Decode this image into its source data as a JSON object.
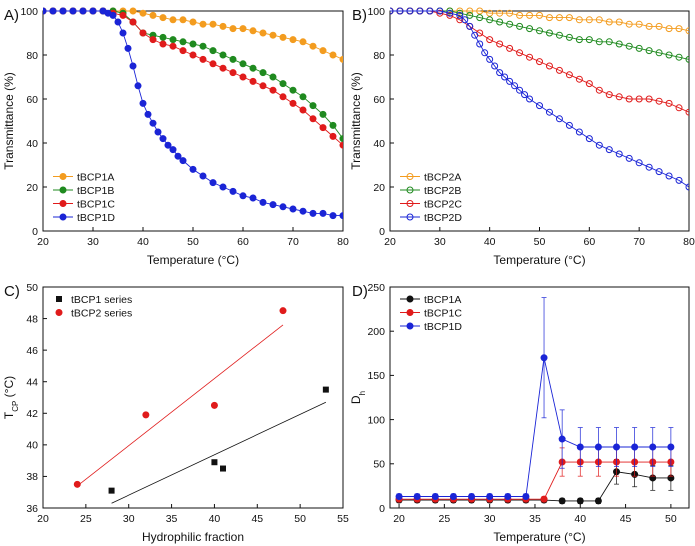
{
  "chart_data": [
    {
      "panel": "A)",
      "type": "line",
      "xlabel": "Temperature (°C)",
      "ylabel": "Transmittance (%)",
      "xlim": [
        20,
        80
      ],
      "ylim": [
        0,
        100
      ],
      "xticks": [
        "20",
        "30",
        "40",
        "50",
        "60",
        "70",
        "80"
      ],
      "yticks": [
        "0",
        "20",
        "40",
        "60",
        "80",
        "100"
      ],
      "marker": "filled",
      "legend_position": "bottom-left",
      "series": [
        {
          "name": "tBCP1A",
          "color": "#f39c1f",
          "x": [
            20,
            22,
            24,
            26,
            28,
            30,
            32,
            34,
            36,
            38,
            40,
            42,
            44,
            46,
            48,
            50,
            52,
            54,
            56,
            58,
            60,
            62,
            64,
            66,
            68,
            70,
            72,
            74,
            76,
            78,
            80
          ],
          "y": [
            100,
            100,
            100,
            100,
            100,
            100,
            100,
            100,
            100,
            100,
            99,
            98,
            97,
            96,
            96,
            95,
            94,
            94,
            93,
            92,
            92,
            91,
            90,
            89,
            88,
            87,
            86,
            84,
            82,
            80,
            78
          ]
        },
        {
          "name": "tBCP1B",
          "color": "#1f8a1f",
          "x": [
            20,
            22,
            24,
            26,
            28,
            30,
            32,
            34,
            36,
            38,
            40,
            42,
            44,
            46,
            48,
            50,
            52,
            54,
            56,
            58,
            60,
            62,
            64,
            66,
            68,
            70,
            72,
            74,
            76,
            78,
            80
          ],
          "y": [
            100,
            100,
            100,
            100,
            100,
            100,
            100,
            100,
            99,
            95,
            90,
            89,
            88,
            87,
            86,
            85,
            84,
            82,
            80,
            78,
            76,
            74,
            72,
            70,
            67,
            64,
            61,
            57,
            53,
            48,
            42
          ]
        },
        {
          "name": "tBCP1C",
          "color": "#e01b1b",
          "x": [
            20,
            22,
            24,
            26,
            28,
            30,
            32,
            34,
            36,
            38,
            40,
            42,
            44,
            46,
            48,
            50,
            52,
            54,
            56,
            58,
            60,
            62,
            64,
            66,
            68,
            70,
            72,
            74,
            76,
            78,
            80
          ],
          "y": [
            100,
            100,
            100,
            100,
            100,
            100,
            100,
            99,
            98,
            95,
            90,
            87,
            85,
            84,
            82,
            80,
            78,
            76,
            74,
            72,
            70,
            68,
            66,
            64,
            61,
            58,
            55,
            51,
            47,
            43,
            39
          ]
        },
        {
          "name": "tBCP1D",
          "color": "#1a24d6",
          "x": [
            20,
            22,
            24,
            26,
            28,
            30,
            32,
            33,
            34,
            35,
            36,
            37,
            38,
            39,
            40,
            41,
            42,
            43,
            44,
            45,
            46,
            47,
            48,
            50,
            52,
            54,
            56,
            58,
            60,
            62,
            64,
            66,
            68,
            70,
            72,
            74,
            76,
            78,
            80
          ],
          "y": [
            100,
            100,
            100,
            100,
            100,
            100,
            100,
            99,
            98,
            95,
            90,
            83,
            75,
            66,
            58,
            53,
            49,
            45,
            42,
            39,
            37,
            34,
            32,
            28,
            25,
            22,
            20,
            18,
            16,
            15,
            13,
            12,
            11,
            10,
            9,
            8,
            8,
            7,
            7
          ]
        }
      ]
    },
    {
      "panel": "B)",
      "type": "line",
      "xlabel": "Temperature (°C)",
      "ylabel": "Transmittance (%)",
      "xlim": [
        20,
        80
      ],
      "ylim": [
        0,
        100
      ],
      "xticks": [
        "20",
        "30",
        "40",
        "50",
        "60",
        "70",
        "80"
      ],
      "yticks": [
        "0",
        "20",
        "40",
        "60",
        "80",
        "100"
      ],
      "marker": "open",
      "legend_position": "bottom-left",
      "series": [
        {
          "name": "tBCP2A",
          "color": "#f39c1f",
          "x": [
            20,
            22,
            24,
            26,
            28,
            30,
            32,
            34,
            36,
            38,
            40,
            42,
            44,
            46,
            48,
            50,
            52,
            54,
            56,
            58,
            60,
            62,
            64,
            66,
            68,
            70,
            72,
            74,
            76,
            78,
            80
          ],
          "y": [
            100,
            100,
            100,
            100,
            100,
            100,
            100,
            100,
            100,
            100,
            99,
            99,
            99,
            98,
            98,
            98,
            97,
            97,
            97,
            96,
            96,
            96,
            95,
            95,
            94,
            94,
            93,
            93,
            92,
            92,
            91
          ]
        },
        {
          "name": "tBCP2B",
          "color": "#1f8a1f",
          "x": [
            20,
            22,
            24,
            26,
            28,
            30,
            32,
            34,
            36,
            38,
            40,
            42,
            44,
            46,
            48,
            50,
            52,
            54,
            56,
            58,
            60,
            62,
            64,
            66,
            68,
            70,
            72,
            74,
            76,
            78,
            80
          ],
          "y": [
            100,
            100,
            100,
            100,
            100,
            100,
            100,
            99,
            98,
            97,
            96,
            95,
            94,
            93,
            92,
            91,
            90,
            89,
            88,
            87,
            87,
            86,
            86,
            85,
            84,
            83,
            82,
            81,
            80,
            79,
            78
          ]
        },
        {
          "name": "tBCP2C",
          "color": "#e01b1b",
          "x": [
            20,
            22,
            24,
            26,
            28,
            30,
            32,
            34,
            36,
            38,
            40,
            42,
            44,
            46,
            48,
            50,
            52,
            54,
            56,
            58,
            60,
            62,
            64,
            66,
            68,
            70,
            72,
            74,
            76,
            78,
            80
          ],
          "y": [
            100,
            100,
            100,
            100,
            100,
            99,
            98,
            96,
            93,
            90,
            87,
            85,
            83,
            81,
            79,
            77,
            75,
            73,
            71,
            69,
            67,
            64,
            62,
            61,
            60,
            60,
            60,
            59,
            58,
            56,
            54
          ]
        },
        {
          "name": "tBCP2D",
          "color": "#1a24d6",
          "x": [
            20,
            22,
            24,
            26,
            28,
            30,
            32,
            34,
            35,
            36,
            37,
            38,
            39,
            40,
            41,
            42,
            43,
            44,
            45,
            46,
            47,
            48,
            50,
            52,
            54,
            56,
            58,
            60,
            62,
            64,
            66,
            68,
            70,
            72,
            74,
            76,
            78,
            80
          ],
          "y": [
            100,
            100,
            100,
            100,
            100,
            100,
            99,
            98,
            96,
            93,
            89,
            85,
            81,
            78,
            75,
            72,
            70,
            68,
            66,
            64,
            62,
            60,
            57,
            54,
            51,
            48,
            45,
            42,
            39,
            37,
            35,
            33,
            31,
            29,
            27,
            25,
            23,
            20
          ]
        }
      ]
    },
    {
      "panel": "C)",
      "type": "scatter",
      "xlabel": "Hydrophilic fraction",
      "ylabel": "T",
      "ylabel_sub": "CP",
      "ylabel_unit": " (°C)",
      "xlim": [
        20,
        55
      ],
      "ylim": [
        36,
        50
      ],
      "xticks": [
        "20",
        "25",
        "30",
        "35",
        "40",
        "45",
        "50",
        "55"
      ],
      "yticks": [
        "36",
        "38",
        "40",
        "42",
        "44",
        "46",
        "48",
        "50"
      ],
      "legend_position": "top-left",
      "series": [
        {
          "name": "tBCP1 series",
          "color": "#111111",
          "marker": "square",
          "x": [
            28,
            40,
            41,
            53
          ],
          "y": [
            37.1,
            38.9,
            38.5,
            43.5
          ],
          "fit": {
            "x": [
              28,
              53
            ],
            "y": [
              36.3,
              42.7
            ]
          }
        },
        {
          "name": "tBCP2 series",
          "color": "#e01b1b",
          "marker": "circle",
          "x": [
            24,
            32,
            40,
            48
          ],
          "y": [
            37.5,
            41.9,
            42.5,
            48.5
          ],
          "fit": {
            "x": [
              24,
              48
            ],
            "y": [
              37.4,
              47.6
            ]
          }
        }
      ]
    },
    {
      "panel": "D)",
      "type": "line",
      "xlabel": "Temperature (°C)",
      "ylabel": "D",
      "ylabel_sub": "h",
      "xlim": [
        19,
        52
      ],
      "ylim": [
        0,
        250
      ],
      "xticks": [
        "20",
        "25",
        "30",
        "35",
        "40",
        "45",
        "50"
      ],
      "yticks": [
        "0",
        "50",
        "100",
        "150",
        "200",
        "250"
      ],
      "legend_position": "top-left",
      "series": [
        {
          "name": "tBCP1A",
          "color": "#111111",
          "x": [
            20,
            22,
            24,
            26,
            28,
            30,
            32,
            34,
            36,
            38,
            40,
            42,
            44,
            46,
            48,
            50
          ],
          "y": [
            9,
            9,
            9,
            9,
            9,
            9,
            9,
            9,
            9,
            8,
            8,
            8,
            41,
            38,
            34,
            34
          ],
          "err": [
            3,
            3,
            3,
            3,
            3,
            3,
            3,
            3,
            3,
            3,
            3,
            3,
            14,
            14,
            14,
            14
          ]
        },
        {
          "name": "tBCP1C",
          "color": "#e01b1b",
          "x": [
            20,
            22,
            24,
            26,
            28,
            30,
            32,
            34,
            36,
            38,
            40,
            42,
            44,
            46,
            48,
            50
          ],
          "y": [
            10,
            10,
            10,
            10,
            10,
            10,
            10,
            10,
            10,
            52,
            52,
            52,
            52,
            52,
            52,
            52
          ],
          "err": [
            3,
            3,
            3,
            3,
            3,
            3,
            3,
            3,
            3,
            16,
            16,
            16,
            16,
            16,
            16,
            16
          ]
        },
        {
          "name": "tBCP1D",
          "color": "#1a24d6",
          "x": [
            20,
            22,
            24,
            26,
            28,
            30,
            32,
            34,
            36,
            38,
            40,
            42,
            44,
            46,
            48,
            50
          ],
          "y": [
            13,
            13,
            13,
            13,
            13,
            13,
            13,
            13,
            170,
            78,
            69,
            69,
            69,
            69,
            69,
            69
          ],
          "err": [
            3,
            3,
            3,
            3,
            3,
            3,
            3,
            3,
            68,
            33,
            22,
            22,
            22,
            22,
            22,
            22
          ]
        }
      ]
    }
  ]
}
